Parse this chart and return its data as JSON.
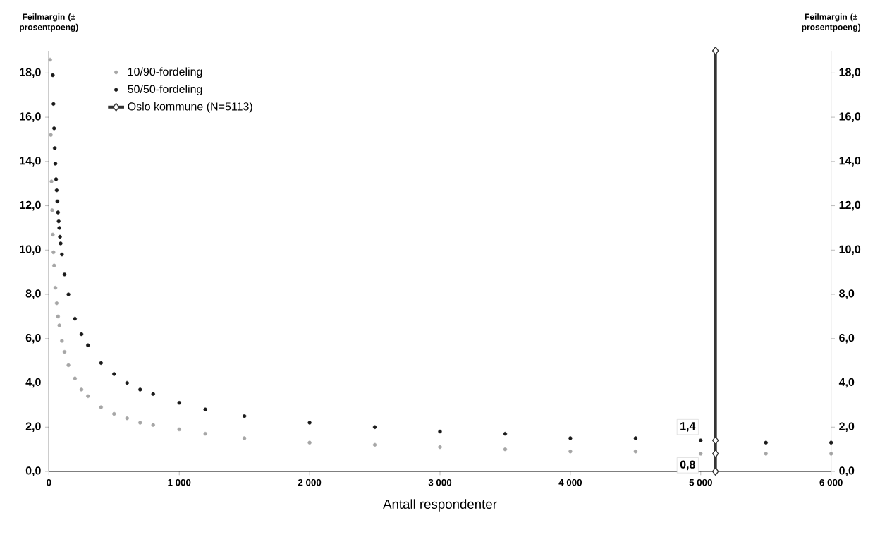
{
  "chart_data": {
    "type": "scatter",
    "xlabel": "Antall respondenter",
    "ylabel": "Feilmargin (± prosentpoeng)",
    "y2label": "Feilmargin (± prosentpoeng)",
    "xlim": [
      0,
      6000
    ],
    "xticks": [
      0,
      {
        "value": 1000,
        "label": "1 000"
      },
      {
        "value": 2000,
        "label": "2 000"
      },
      {
        "value": 3000,
        "label": "3 000"
      },
      {
        "value": 4000,
        "label": "4 000"
      },
      {
        "value": 5000,
        "label": "5 000"
      },
      {
        "value": 6000,
        "label": "6 000"
      }
    ],
    "ylim": [
      0,
      19
    ],
    "yticks": [
      {
        "value": 0,
        "label": "0,0"
      },
      {
        "value": 2,
        "label": "2,0"
      },
      {
        "value": 4,
        "label": "4,0"
      },
      {
        "value": 6,
        "label": "6,0"
      },
      {
        "value": 8,
        "label": "8,0"
      },
      {
        "value": 10,
        "label": "10,0"
      },
      {
        "value": 12,
        "label": "12,0"
      },
      {
        "value": 14,
        "label": "14,0"
      },
      {
        "value": 16,
        "label": "16,0"
      },
      {
        "value": 18,
        "label": "18,0"
      }
    ],
    "y2lim": [
      0,
      19
    ],
    "y2ticks": [
      {
        "value": 0,
        "label": "0,0"
      },
      {
        "value": 2,
        "label": "2,0"
      },
      {
        "value": 4,
        "label": "4,0"
      },
      {
        "value": 6,
        "label": "6,0"
      },
      {
        "value": 8,
        "label": "8,0"
      },
      {
        "value": 10,
        "label": "10,0"
      },
      {
        "value": 12,
        "label": "12,0"
      },
      {
        "value": 14,
        "label": "14,0"
      },
      {
        "value": 16,
        "label": "16,0"
      },
      {
        "value": 18,
        "label": "18,0"
      }
    ],
    "legend": "top left",
    "marker": "circle",
    "series": [
      {
        "name": "10/90-fordeling",
        "color": "#a6a6a6",
        "x": [
          10,
          15,
          20,
          25,
          30,
          35,
          40,
          50,
          60,
          70,
          80,
          100,
          120,
          150,
          200,
          250,
          300,
          400,
          500,
          600,
          700,
          800,
          1000,
          1200,
          1500,
          2000,
          2500,
          3000,
          3500,
          4000,
          4500,
          5000,
          5500,
          6000
        ],
        "values": [
          18.6,
          15.2,
          13.1,
          11.8,
          10.7,
          9.9,
          9.3,
          8.3,
          7.6,
          7.0,
          6.6,
          5.9,
          5.4,
          4.8,
          4.2,
          3.7,
          3.4,
          2.9,
          2.6,
          2.4,
          2.2,
          2.1,
          1.9,
          1.7,
          1.5,
          1.3,
          1.2,
          1.1,
          1.0,
          0.9,
          0.9,
          0.8,
          0.8,
          0.8
        ]
      },
      {
        "name": "50/50-fordeling",
        "color": "#1a1a1a",
        "x": [
          30,
          35,
          40,
          45,
          50,
          55,
          60,
          65,
          70,
          75,
          80,
          85,
          90,
          100,
          120,
          150,
          200,
          250,
          300,
          400,
          500,
          600,
          700,
          800,
          1000,
          1200,
          1500,
          2000,
          2500,
          3000,
          3500,
          4000,
          4500,
          5000,
          5500,
          6000
        ],
        "values": [
          17.9,
          16.6,
          15.5,
          14.6,
          13.9,
          13.2,
          12.7,
          12.2,
          11.7,
          11.3,
          11.0,
          10.6,
          10.3,
          9.8,
          8.9,
          8.0,
          6.9,
          6.2,
          5.7,
          4.9,
          4.4,
          4.0,
          3.7,
          3.5,
          3.1,
          2.8,
          2.5,
          2.2,
          2.0,
          1.8,
          1.7,
          1.5,
          1.5,
          1.4,
          1.3,
          1.3
        ]
      },
      {
        "name": "Oslo kommune (N=5113)",
        "type": "line",
        "marker": "diamond",
        "line_style": "solid",
        "color": "#333333",
        "x": [
          5113,
          5113,
          5113,
          5113
        ],
        "values": [
          0,
          0.8,
          1.4,
          19
        ],
        "value_labels": [
          null,
          "0,8",
          "1,4",
          null
        ]
      }
    ]
  }
}
